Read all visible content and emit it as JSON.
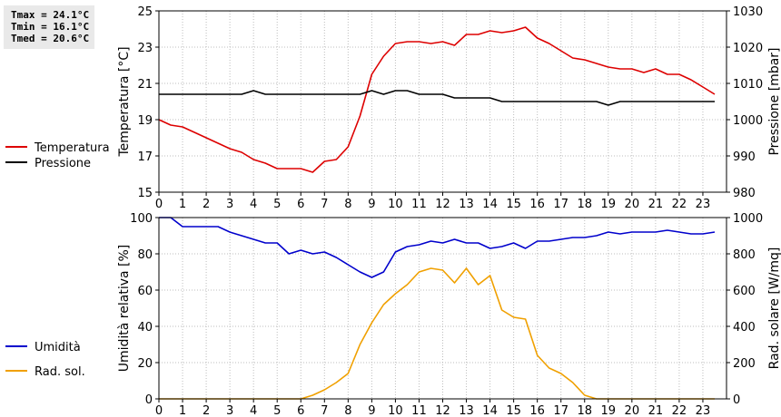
{
  "stats": {
    "tmax": "Tmax = 24.1°C",
    "tmin": "Tmin = 16.1°C",
    "tmed": "Tmed = 20.6°C"
  },
  "chart_data": [
    {
      "type": "line",
      "x_ticks": [
        "0",
        "1",
        "2",
        "3",
        "4",
        "5",
        "6",
        "7",
        "8",
        "9",
        "10",
        "11",
        "12",
        "13",
        "14",
        "15",
        "16",
        "17",
        "18",
        "19",
        "20",
        "21",
        "22",
        "23"
      ],
      "xlim": [
        0,
        24
      ],
      "ylabel": "Temperatura [°C]",
      "ylim": [
        15,
        25
      ],
      "y_ticks": [
        "15",
        "17",
        "19",
        "21",
        "23",
        "25"
      ],
      "y2label": "Pressione [mbar]",
      "y2lim": [
        980,
        1030
      ],
      "y2_ticks": [
        "980",
        "990",
        "1000",
        "1010",
        "1020",
        "1030"
      ],
      "grid": true,
      "legend": "left",
      "series": [
        {
          "name": "Temperatura",
          "axis": "left",
          "color": "#dd0000",
          "x": [
            0,
            0.5,
            1,
            1.5,
            2,
            2.5,
            3,
            3.5,
            4,
            4.5,
            5,
            5.5,
            6,
            6.5,
            7,
            7.5,
            8,
            8.5,
            9,
            9.5,
            10,
            10.5,
            11,
            11.5,
            12,
            12.5,
            13,
            13.5,
            14,
            14.5,
            15,
            15.5,
            16,
            16.5,
            17,
            17.5,
            18,
            18.5,
            19,
            19.5,
            20,
            20.5,
            21,
            21.5,
            22,
            22.5,
            23,
            23.5
          ],
          "values": [
            19.0,
            18.7,
            18.6,
            18.3,
            18.0,
            17.7,
            17.4,
            17.2,
            16.8,
            16.6,
            16.3,
            16.3,
            16.3,
            16.1,
            16.7,
            16.8,
            17.5,
            19.2,
            21.5,
            22.5,
            23.2,
            23.3,
            23.3,
            23.2,
            23.3,
            23.1,
            23.7,
            23.7,
            23.9,
            23.8,
            23.9,
            24.1,
            23.5,
            23.2,
            22.8,
            22.4,
            22.3,
            22.1,
            21.9,
            21.8,
            21.8,
            21.6,
            21.8,
            21.5,
            21.5,
            21.2,
            20.8,
            20.4
          ]
        },
        {
          "name": "Pressione",
          "axis": "right",
          "color": "#000000",
          "x": [
            0,
            0.5,
            1,
            1.5,
            2,
            2.5,
            3,
            3.5,
            4,
            4.5,
            5,
            5.5,
            6,
            6.5,
            7,
            7.5,
            8,
            8.5,
            9,
            9.5,
            10,
            10.5,
            11,
            11.5,
            12,
            12.5,
            13,
            13.5,
            14,
            14.5,
            15,
            15.5,
            16,
            16.5,
            17,
            17.5,
            18,
            18.5,
            19,
            19.5,
            20,
            20.5,
            21,
            21.5,
            22,
            22.5,
            23,
            23.5
          ],
          "values": [
            1007,
            1007,
            1007,
            1007,
            1007,
            1007,
            1007,
            1007,
            1008,
            1007,
            1007,
            1007,
            1007,
            1007,
            1007,
            1007,
            1007,
            1007,
            1008,
            1007,
            1008,
            1008,
            1007,
            1007,
            1007,
            1006,
            1006,
            1006,
            1006,
            1005,
            1005,
            1005,
            1005,
            1005,
            1005,
            1005,
            1005,
            1005,
            1004,
            1005,
            1005,
            1005,
            1005,
            1005,
            1005,
            1005,
            1005,
            1005
          ]
        }
      ]
    },
    {
      "type": "line",
      "x_ticks": [
        "0",
        "1",
        "2",
        "3",
        "4",
        "5",
        "6",
        "7",
        "8",
        "9",
        "10",
        "11",
        "12",
        "13",
        "14",
        "15",
        "16",
        "17",
        "18",
        "19",
        "20",
        "21",
        "22",
        "23"
      ],
      "xlim": [
        0,
        24
      ],
      "ylabel": "Umidità relativa [%]",
      "ylim": [
        0,
        100
      ],
      "y_ticks": [
        "0",
        "20",
        "40",
        "60",
        "80",
        "100"
      ],
      "y2label": "Rad. solare [W/mq]",
      "y2lim": [
        0,
        1000
      ],
      "y2_ticks": [
        "0",
        "200",
        "400",
        "600",
        "800",
        "1000"
      ],
      "grid": true,
      "legend": "left",
      "series": [
        {
          "name": "Umidità",
          "axis": "left",
          "color": "#0000cc",
          "x": [
            0,
            0.5,
            1,
            1.5,
            2,
            2.5,
            3,
            3.5,
            4,
            4.5,
            5,
            5.5,
            6,
            6.5,
            7,
            7.5,
            8,
            8.5,
            9,
            9.5,
            10,
            10.5,
            11,
            11.5,
            12,
            12.5,
            13,
            13.5,
            14,
            14.5,
            15,
            15.5,
            16,
            16.5,
            17,
            17.5,
            18,
            18.5,
            19,
            19.5,
            20,
            20.5,
            21,
            21.5,
            22,
            22.5,
            23,
            23.5
          ],
          "values": [
            100,
            100,
            95,
            95,
            95,
            95,
            92,
            90,
            88,
            86,
            86,
            80,
            82,
            80,
            81,
            78,
            74,
            70,
            67,
            70,
            81,
            84,
            85,
            87,
            86,
            88,
            86,
            86,
            83,
            84,
            86,
            83,
            87,
            87,
            88,
            89,
            89,
            90,
            92,
            91,
            92,
            92,
            92,
            93,
            92,
            91,
            91,
            92
          ]
        },
        {
          "name": "Rad. sol.",
          "axis": "right",
          "color": "#f0a000",
          "x": [
            0,
            0.5,
            1,
            1.5,
            2,
            2.5,
            3,
            3.5,
            4,
            4.5,
            5,
            5.5,
            6,
            6.5,
            7,
            7.5,
            8,
            8.5,
            9,
            9.5,
            10,
            10.5,
            11,
            11.5,
            12,
            12.5,
            13,
            13.5,
            14,
            14.5,
            15,
            15.5,
            16,
            16.5,
            17,
            17.5,
            18,
            18.5,
            19,
            19.5,
            20,
            20.5,
            21,
            21.5,
            22,
            22.5,
            23,
            23.5
          ],
          "values": [
            0,
            0,
            0,
            0,
            0,
            0,
            0,
            0,
            0,
            0,
            0,
            0,
            0,
            20,
            50,
            90,
            140,
            300,
            420,
            520,
            580,
            630,
            700,
            720,
            710,
            640,
            720,
            630,
            680,
            490,
            450,
            440,
            240,
            170,
            140,
            90,
            20,
            0,
            0,
            0,
            0,
            0,
            0,
            0,
            0,
            0,
            0,
            0
          ]
        }
      ]
    }
  ]
}
